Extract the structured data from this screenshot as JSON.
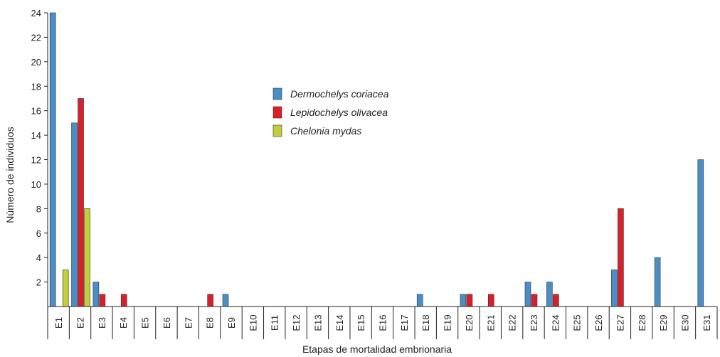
{
  "chart_data": {
    "type": "bar",
    "xlabel": "Etapas de mortalidad embrionaria",
    "ylabel": "Número de individuos",
    "ylim": [
      0,
      24
    ],
    "yticks": [
      2,
      4,
      6,
      8,
      10,
      12,
      14,
      16,
      18,
      20,
      22,
      24
    ],
    "grid": false,
    "legend_position": "top-center",
    "categories": [
      "E1",
      "E2",
      "E3",
      "E4",
      "E5",
      "E6",
      "E7",
      "E8",
      "E9",
      "E10",
      "E11",
      "E12",
      "E13",
      "E14",
      "E15",
      "E16",
      "E17",
      "E18",
      "E19",
      "E20",
      "E21",
      "E22",
      "E23",
      "E24",
      "E25",
      "E26",
      "E27",
      "E28",
      "E29",
      "E30",
      "E31"
    ],
    "series": [
      {
        "name": "Dermochelys coriacea",
        "color": "#4a8ec8",
        "values": [
          24,
          15,
          2,
          0,
          0,
          0,
          0,
          0,
          1,
          0,
          0,
          0,
          0,
          0,
          0,
          0,
          0,
          1,
          0,
          1,
          0,
          0,
          2,
          2,
          0,
          0,
          3,
          0,
          4,
          0,
          12
        ]
      },
      {
        "name": "Lepidochelys olivacea",
        "color": "#d9202a",
        "values": [
          0,
          17,
          1,
          1,
          0,
          0,
          0,
          1,
          0,
          0,
          0,
          0,
          0,
          0,
          0,
          0,
          0,
          0,
          0,
          1,
          1,
          0,
          1,
          1,
          0,
          0,
          8,
          0,
          0,
          0,
          0
        ]
      },
      {
        "name": "Chelonia mydas",
        "color": "#c2cf3a",
        "values": [
          3,
          8,
          0,
          0,
          0,
          0,
          0,
          0,
          0,
          0,
          0,
          0,
          0,
          0,
          0,
          0,
          0,
          0,
          0,
          0,
          0,
          0,
          0,
          0,
          0,
          0,
          0,
          0,
          0,
          0,
          0
        ]
      }
    ]
  }
}
